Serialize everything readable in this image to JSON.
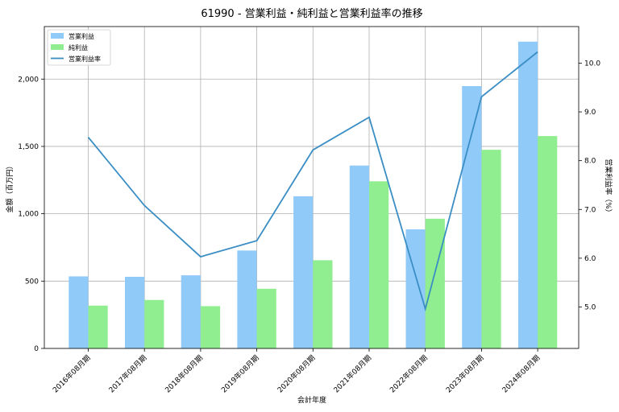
{
  "chart_data": {
    "type": "bar",
    "title": "61990 - 営業利益・純利益と営業利益率の推移",
    "xlabel": "会計年度",
    "ylabel": "金額（百万円）",
    "y2label": "営業利益率（%）",
    "categories": [
      "2016年08月期",
      "2017年08月期",
      "2018年08月期",
      "2019年08月期",
      "2020年08月期",
      "2021年08月期",
      "2022年08月期",
      "2023年08月期",
      "2024年08月期"
    ],
    "series": [
      {
        "name": "営業利益",
        "type": "bar",
        "axis": "left",
        "color": "#90CAF9",
        "values": [
          535,
          532,
          543,
          727,
          1130,
          1358,
          884,
          1948,
          2278
        ]
      },
      {
        "name": "純利益",
        "type": "bar",
        "axis": "left",
        "color": "#90EE90",
        "values": [
          318,
          360,
          314,
          443,
          655,
          1241,
          963,
          1475,
          1577
        ]
      },
      {
        "name": "営業利益率",
        "type": "line",
        "axis": "right",
        "color": "#3A8EC4",
        "values": [
          8.48,
          7.08,
          6.03,
          6.36,
          8.22,
          8.89,
          4.96,
          9.31,
          10.23
        ]
      }
    ],
    "ylim": [
      0,
      2390
    ],
    "y2lim": [
      4.15,
      10.75
    ],
    "yticks": [
      "0",
      "500",
      "1,000",
      "1,500",
      "2,000"
    ],
    "y2ticks": [
      "5.0",
      "6.0",
      "7.0",
      "8.0",
      "9.0",
      "10.0"
    ],
    "grid": true,
    "legend": "top-left"
  }
}
